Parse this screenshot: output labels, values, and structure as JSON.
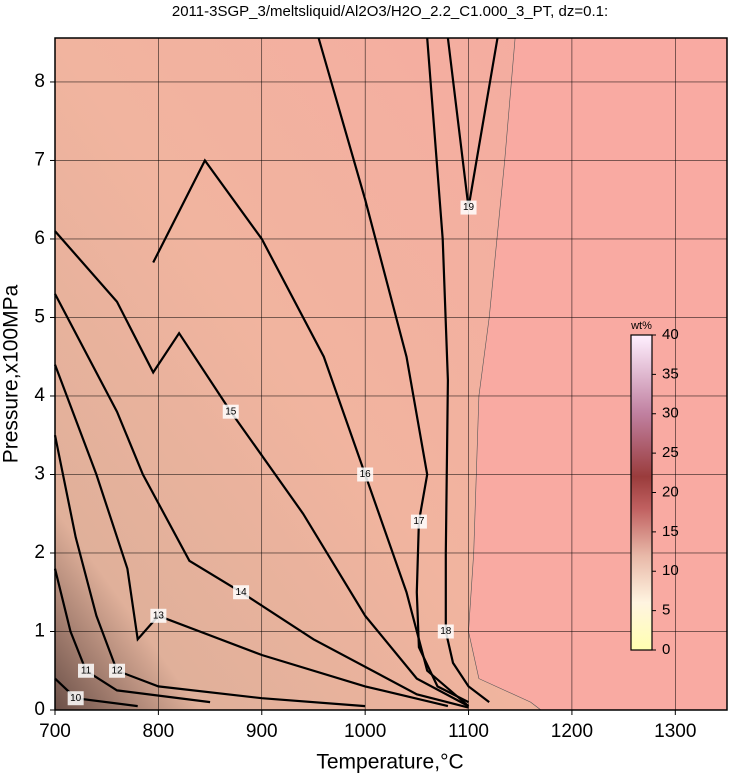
{
  "chart_data": {
    "type": "contour",
    "title": "2011-3SGP_3/meltsliquid/Al2O3/H2O_2.2_C1.000_3_PT, dz=0.1:",
    "xlabel": "Temperature,°C",
    "ylabel": "Pressure,x100MPa",
    "xlim": [
      700,
      1350
    ],
    "ylim": [
      0,
      8.56
    ],
    "xticks": [
      700,
      800,
      900,
      1000,
      1100,
      1200,
      1300
    ],
    "yticks": [
      0,
      1,
      2,
      3,
      4,
      5,
      6,
      7,
      8
    ],
    "grid": true,
    "background_color": "#f9aaa2",
    "boundary": {
      "x": [
        1145,
        1135,
        1120,
        1110,
        1105,
        1100,
        1110,
        1160,
        1170
      ],
      "y": [
        8.56,
        7,
        5,
        4,
        2,
        1,
        0.4,
        0.1,
        0
      ]
    },
    "contours": [
      {
        "level": 19,
        "x": [
          1080,
          1100,
          1128
        ],
        "y": [
          8.56,
          6.4,
          8.56
        ]
      },
      {
        "level": 18,
        "x": [
          1060,
          1075,
          1080,
          1078,
          1078,
          1085,
          1100,
          1120
        ],
        "y": [
          8.56,
          6,
          4.2,
          2,
          1,
          0.6,
          0.3,
          0.1
        ]
      },
      {
        "level": 17,
        "x": [
          955,
          1000,
          1040,
          1060,
          1052,
          1050,
          1052,
          1070,
          1100
        ],
        "y": [
          8.56,
          6.5,
          4.5,
          3,
          2.4,
          1.5,
          0.8,
          0.3,
          0.1
        ]
      },
      {
        "level": 16,
        "x": [
          795,
          845,
          900,
          960,
          1000,
          1040,
          1060,
          1100
        ],
        "y": [
          5.7,
          7,
          6,
          4.5,
          3,
          1.5,
          0.5,
          0.05
        ]
      },
      {
        "level": 15,
        "x": [
          700,
          760,
          795,
          820,
          870,
          940,
          1000,
          1050,
          1100
        ],
        "y": [
          6.1,
          5.2,
          4.3,
          4.8,
          3.8,
          2.5,
          1.2,
          0.4,
          0.05
        ]
      },
      {
        "level": 14,
        "x": [
          700,
          760,
          785,
          830,
          880,
          950,
          1050,
          1100
        ],
        "y": [
          5.3,
          3.8,
          3,
          1.9,
          1.5,
          0.9,
          0.2,
          0.03
        ]
      },
      {
        "level": 13,
        "x": [
          700,
          740,
          770,
          780,
          800,
          900,
          1000,
          1080
        ],
        "y": [
          4.4,
          3,
          1.8,
          0.9,
          1.2,
          0.7,
          0.3,
          0.05
        ]
      },
      {
        "level": 12,
        "x": [
          700,
          720,
          740,
          760,
          800,
          900,
          1000
        ],
        "y": [
          3.5,
          2.2,
          1.2,
          0.5,
          0.3,
          0.15,
          0.05
        ]
      },
      {
        "level": 11,
        "x": [
          700,
          715,
          730,
          760,
          850
        ],
        "y": [
          1.8,
          1,
          0.5,
          0.25,
          0.1
        ]
      },
      {
        "level": 10,
        "x": [
          700,
          720,
          780
        ],
        "y": [
          0.4,
          0.15,
          0.05
        ]
      }
    ],
    "colorbar": {
      "label": "wt%",
      "lim": [
        0,
        40
      ],
      "ticks": [
        0,
        5,
        10,
        15,
        20,
        25,
        30,
        35,
        40
      ]
    }
  }
}
